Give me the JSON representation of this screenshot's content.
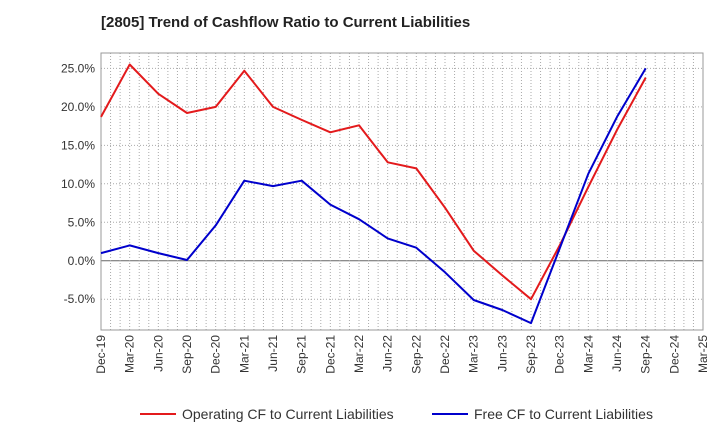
{
  "chart_data": {
    "type": "line",
    "title": "[2805]  Trend of Cashflow Ratio to Current Liabilities",
    "xlabel": "",
    "ylabel": "",
    "x": [
      "Dec-19",
      "Mar-20",
      "Jun-20",
      "Sep-20",
      "Dec-20",
      "Mar-21",
      "Jun-21",
      "Sep-21",
      "Dec-21",
      "Mar-22",
      "Jun-22",
      "Sep-22",
      "Dec-22",
      "Mar-23",
      "Jun-23",
      "Sep-23",
      "Dec-23",
      "Mar-24",
      "Jun-24",
      "Sep-24",
      "Dec-24",
      "Mar-25"
    ],
    "ylim": [
      -9.0,
      27.0
    ],
    "yticks": [
      -5.0,
      0.0,
      5.0,
      10.0,
      15.0,
      20.0,
      25.0
    ],
    "ytick_labels": [
      "-5.0%",
      "0.0%",
      "5.0%",
      "10.0%",
      "15.0%",
      "20.0%",
      "25.0%"
    ],
    "grid": true,
    "legend_position": "bottom",
    "series": [
      {
        "name": "Operating CF to Current Liabilities",
        "color": "#e31a1c",
        "values": [
          18.7,
          25.5,
          21.7,
          19.2,
          20.0,
          24.7,
          20.0,
          18.3,
          16.7,
          17.6,
          12.8,
          12.0,
          6.9,
          1.3,
          -1.9,
          -5.0,
          2.0,
          9.6,
          17.0,
          23.8,
          null,
          null
        ]
      },
      {
        "name": "Free CF to Current Liabilities",
        "color": "#0000cc",
        "values": [
          1.0,
          2.0,
          1.0,
          0.1,
          4.6,
          10.4,
          9.7,
          10.4,
          7.3,
          5.4,
          2.9,
          1.7,
          -1.5,
          -5.1,
          -6.4,
          -8.1,
          1.6,
          11.3,
          18.7,
          25.0,
          null,
          null
        ]
      }
    ]
  }
}
